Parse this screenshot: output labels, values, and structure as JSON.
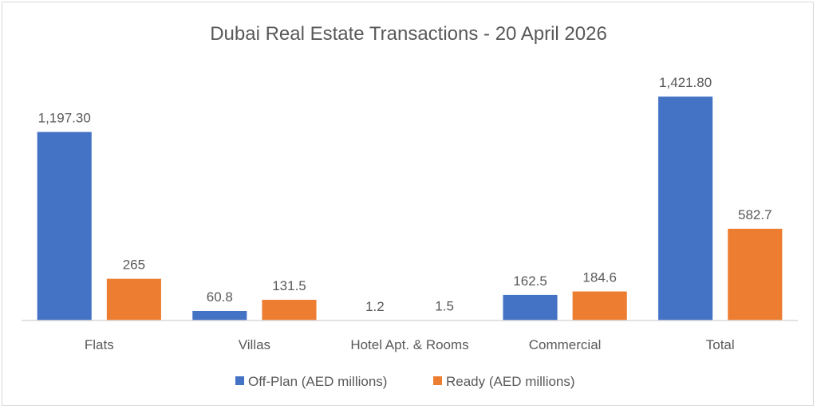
{
  "chart_data": {
    "type": "bar",
    "title": "Dubai Real Estate Transactions - 20 April 2026",
    "categories": [
      "Flats",
      "Villas",
      "Hotel Apt. & Rooms",
      "Commercial",
      "Total"
    ],
    "series": [
      {
        "name": "Off-Plan (AED millions)",
        "color": "#4472c4",
        "values": [
          1197.3,
          60.8,
          1.2,
          162.5,
          1421.8
        ],
        "labels": [
          "1,197.30",
          "60.8",
          "1.2",
          "162.5",
          "1,421.80"
        ]
      },
      {
        "name": "Ready (AED millions)",
        "color": "#ed7d31",
        "values": [
          265,
          131.5,
          1.5,
          184.6,
          582.7
        ],
        "labels": [
          "265",
          "131.5",
          "1.5",
          "184.6",
          "582.7"
        ]
      }
    ],
    "xlabel": "",
    "ylabel": "",
    "ylim": [
      0,
      1600
    ],
    "grid": false,
    "legend": "bottom"
  }
}
